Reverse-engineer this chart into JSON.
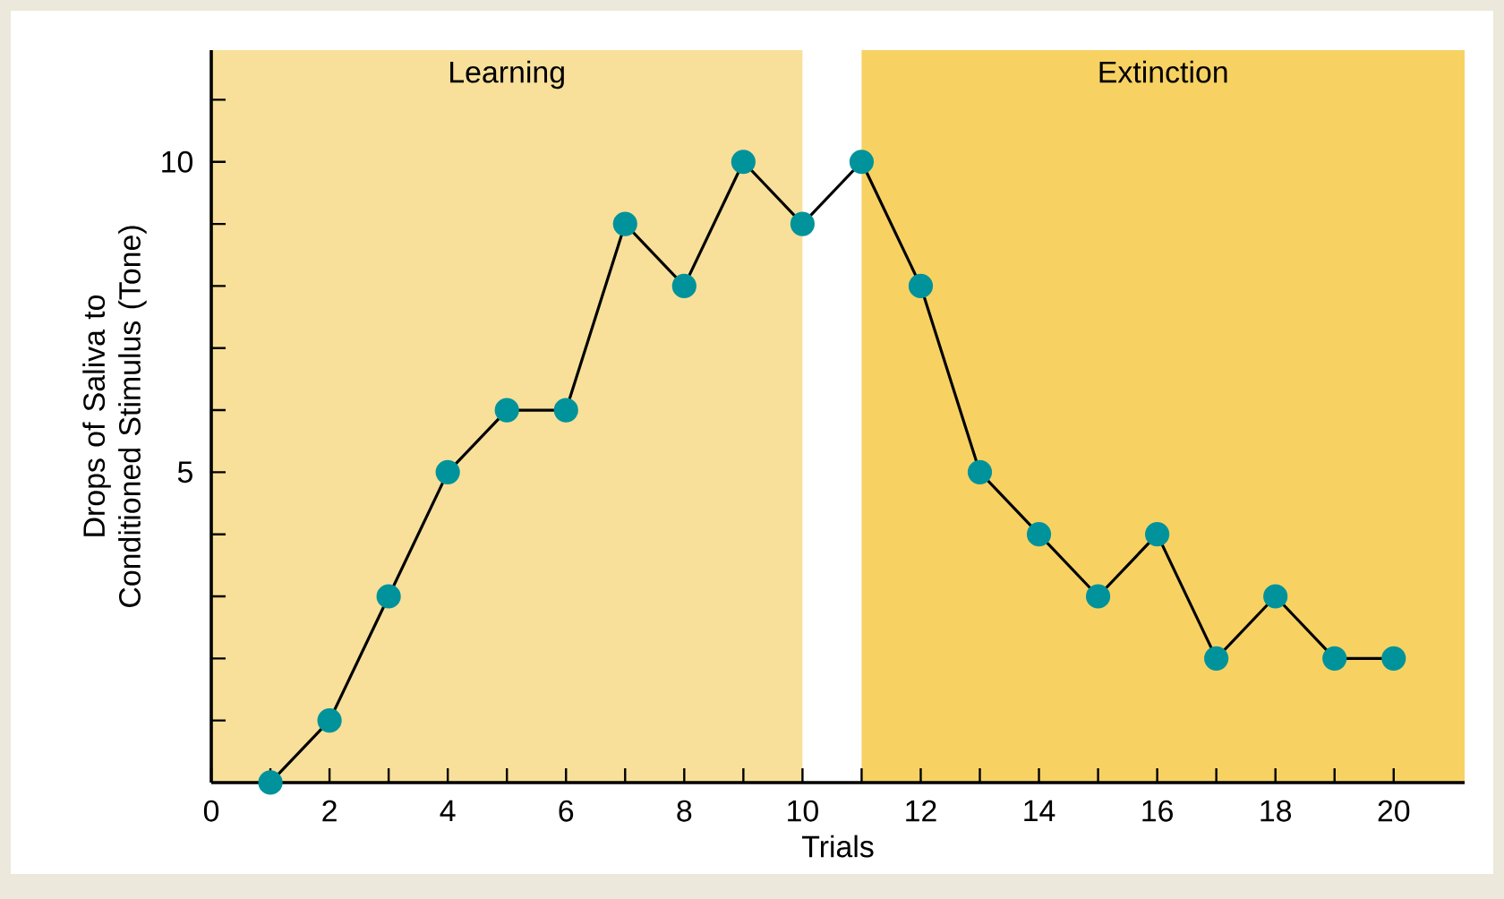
{
  "chart_data": {
    "type": "line",
    "xlabel": "Trials",
    "ylabel": "Drops of Saliva to Conditioned Stimulus (Tone)",
    "x": [
      1,
      2,
      3,
      4,
      5,
      6,
      7,
      8,
      9,
      10,
      11,
      12,
      13,
      14,
      15,
      16,
      17,
      18,
      19,
      20
    ],
    "series": [
      {
        "color": "#00939b",
        "values": [
          0,
          1,
          3,
          5,
          6,
          6,
          9,
          8,
          10,
          9,
          10,
          8,
          5,
          4,
          3,
          4,
          2,
          3,
          2,
          2
        ]
      }
    ],
    "marker": "circle",
    "line_style": "solid",
    "xlim": [
      0,
      21.2
    ],
    "ylim": [
      0,
      11.8
    ],
    "xticks": [
      0,
      {
        "value": 1,
        "label": null
      },
      2,
      {
        "value": 3,
        "label": null
      },
      4,
      {
        "value": 5,
        "label": null
      },
      6,
      {
        "value": 7,
        "label": null
      },
      8,
      {
        "value": 9,
        "label": null
      },
      10,
      {
        "value": 11,
        "label": null
      },
      12,
      {
        "value": 13,
        "label": null
      },
      14,
      {
        "value": 15,
        "label": null
      },
      16,
      {
        "value": 17,
        "label": null
      },
      18,
      {
        "value": 19,
        "label": null
      },
      20
    ],
    "yticks": [
      {
        "value": 1,
        "label": null
      },
      {
        "value": 2,
        "label": null
      },
      {
        "value": 3,
        "label": null
      },
      {
        "value": 4,
        "label": null
      },
      5,
      {
        "value": 6,
        "label": null
      },
      {
        "value": 7,
        "label": null
      },
      {
        "value": 8,
        "label": null
      },
      {
        "value": 9,
        "label": null
      },
      10,
      {
        "value": 11,
        "label": null
      }
    ],
    "bands": [
      {
        "axis": "x",
        "from": 0,
        "to": 10,
        "label": "Learning",
        "color": "#f8e09a"
      },
      {
        "axis": "x",
        "from": 11,
        "to": 21.2,
        "label": "Extinction",
        "color": "#f7d263"
      }
    ]
  }
}
